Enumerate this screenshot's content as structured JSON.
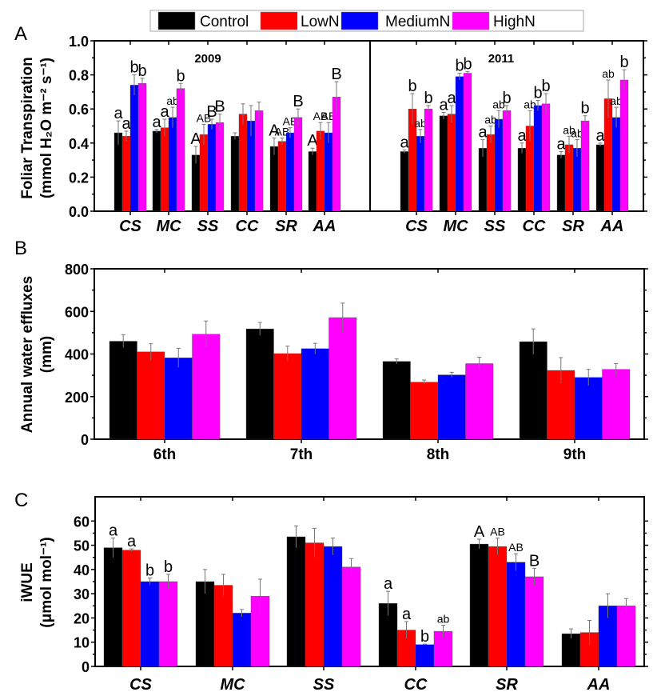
{
  "legend": {
    "entries": [
      {
        "name": "Control",
        "color": "#000000"
      },
      {
        "name": "LowN",
        "color": "#ff0000"
      },
      {
        "name": "MediumN",
        "color": "#0000ff"
      },
      {
        "name": "HighN",
        "color": "#ff00ff"
      }
    ]
  },
  "chart_data": [
    {
      "id": "A",
      "panel_letter": "A",
      "type": "bar",
      "ylabel_line1": "Foliar Transpiration",
      "ylabel_line2": "(mmol H₂O m⁻² s⁻¹)",
      "ylim": [
        0,
        1.0
      ],
      "yticks": [
        0.0,
        0.2,
        0.4,
        0.6,
        0.8,
        1.0
      ],
      "ytick_labels": [
        "0.0",
        "0.2",
        "0.4",
        "0.6",
        "0.8",
        "1.0"
      ],
      "subpanels": [
        {
          "title": "2009",
          "categories": [
            "CS",
            "MC",
            "SS",
            "CC",
            "SR",
            "AA"
          ],
          "series": [
            {
              "name": "Control",
              "values": [
                0.46,
                0.47,
                0.33,
                0.44,
                0.38,
                0.35
              ],
              "errors": [
                0.07,
                0.01,
                0.05,
                0.02,
                0.05,
                0.02
              ]
            },
            {
              "name": "LowN",
              "values": [
                0.44,
                0.49,
                0.45,
                0.57,
                0.41,
                0.47
              ],
              "errors": [
                0.03,
                0.05,
                0.06,
                0.06,
                0.02,
                0.05
              ]
            },
            {
              "name": "MediumN",
              "values": [
                0.74,
                0.55,
                0.51,
                0.53,
                0.46,
                0.46
              ],
              "errors": [
                0.06,
                0.06,
                0.03,
                0.09,
                0.03,
                0.06
              ]
            },
            {
              "name": "HighN",
              "values": [
                0.75,
                0.72,
                0.52,
                0.59,
                0.55,
                0.67
              ],
              "errors": [
                0.03,
                0.03,
                0.05,
                0.05,
                0.05,
                0.09
              ]
            }
          ],
          "sig_letters": [
            [
              "a",
              "a",
              "b",
              "b"
            ],
            [
              "a",
              "a",
              "ab",
              "b"
            ],
            [
              "A",
              "AB",
              "B",
              "B"
            ],
            [
              "",
              "",
              "",
              ""
            ],
            [
              "A",
              "AB",
              "AB",
              "B"
            ],
            [
              "A",
              "AB",
              "AB",
              "B"
            ]
          ]
        },
        {
          "title": "2011",
          "categories": [
            "CS",
            "MC",
            "SS",
            "CC",
            "SR",
            "AA"
          ],
          "series": [
            {
              "name": "Control",
              "values": [
                0.35,
                0.56,
                0.37,
                0.37,
                0.33,
                0.39
              ],
              "errors": [
                0.01,
                0.02,
                0.05,
                0.03,
                0.02,
                0.01
              ]
            },
            {
              "name": "LowN",
              "values": [
                0.6,
                0.57,
                0.45,
                0.5,
                0.39,
                0.66
              ],
              "errors": [
                0.09,
                0.05,
                0.05,
                0.09,
                0.05,
                0.11
              ]
            },
            {
              "name": "MediumN",
              "values": [
                0.44,
                0.79,
                0.54,
                0.62,
                0.37,
                0.55
              ],
              "errors": [
                0.04,
                0.02,
                0.05,
                0.03,
                0.05,
                0.06
              ]
            },
            {
              "name": "HighN",
              "values": [
                0.6,
                0.81,
                0.59,
                0.63,
                0.53,
                0.77
              ],
              "errors": [
                0.02,
                0.01,
                0.03,
                0.06,
                0.03,
                0.06
              ]
            }
          ],
          "sig_letters": [
            [
              "a",
              "b",
              "ab",
              "b"
            ],
            [
              "a",
              "a",
              "b",
              "b"
            ],
            [
              "a",
              "ab",
              "ab",
              "b"
            ],
            [
              "a",
              "ab",
              "b",
              "b"
            ],
            [
              "a",
              "ab",
              "ab",
              "b"
            ],
            [
              "a",
              "ab",
              "ab",
              "b"
            ]
          ]
        }
      ]
    },
    {
      "id": "B",
      "panel_letter": "B",
      "type": "bar",
      "ylabel_line1": "Annual water effluxes",
      "ylabel_line2": "(mm)",
      "ylim": [
        0,
        800
      ],
      "yticks": [
        0,
        200,
        400,
        600,
        800
      ],
      "ytick_labels": [
        "0",
        "200",
        "400",
        "600",
        "800"
      ],
      "categories": [
        "6th",
        "7th",
        "8th",
        "9th"
      ],
      "series": [
        {
          "name": "Control",
          "values": [
            460,
            518,
            365,
            458
          ],
          "errors": [
            30,
            30,
            12,
            60
          ]
        },
        {
          "name": "LowN",
          "values": [
            410,
            402,
            268,
            323
          ],
          "errors": [
            38,
            35,
            10,
            60
          ]
        },
        {
          "name": "MediumN",
          "values": [
            382,
            425,
            302,
            290
          ],
          "errors": [
            45,
            25,
            12,
            38
          ]
        },
        {
          "name": "HighN",
          "values": [
            493,
            571,
            355,
            328
          ],
          "errors": [
            62,
            68,
            30,
            27
          ]
        }
      ]
    },
    {
      "id": "C",
      "panel_letter": "C",
      "type": "bar",
      "ylabel_line1": "iWUE",
      "ylabel_line2": "(μmol mol⁻¹)",
      "ylim": [
        0,
        70
      ],
      "yticks": [
        0,
        10,
        20,
        30,
        40,
        50,
        60
      ],
      "ytick_labels": [
        "0",
        "10",
        "20",
        "30",
        "40",
        "50",
        "60"
      ],
      "categories": [
        "CS",
        "MC",
        "SS",
        "CC",
        "SR",
        "AA"
      ],
      "series": [
        {
          "name": "Control",
          "values": [
            49,
            35,
            53.5,
            26,
            50.5,
            13.5
          ],
          "errors": [
            4,
            5,
            4.5,
            5,
            2,
            2
          ]
        },
        {
          "name": "LowN",
          "values": [
            48,
            33.5,
            51,
            15,
            49.5,
            14
          ],
          "errors": [
            0.5,
            4.5,
            6,
            3.5,
            3.5,
            5
          ]
        },
        {
          "name": "MediumN",
          "values": [
            35,
            22,
            49.5,
            9,
            43,
            25
          ],
          "errors": [
            1.5,
            1.5,
            3.5,
            0.2,
            3.5,
            5
          ]
        },
        {
          "name": "HighN",
          "values": [
            35,
            29,
            41,
            14.5,
            37,
            25
          ],
          "errors": [
            3,
            7,
            3.5,
            2.5,
            3.5,
            3
          ]
        }
      ],
      "sig_letters": [
        [
          "a",
          "a",
          "b",
          "b"
        ],
        [
          "",
          "",
          "",
          ""
        ],
        [
          "",
          "",
          "",
          ""
        ],
        [
          "a",
          "a",
          "b",
          "ab"
        ],
        [
          "A",
          "AB",
          "AB",
          "B"
        ],
        [
          "",
          "",
          "",
          ""
        ]
      ]
    }
  ]
}
